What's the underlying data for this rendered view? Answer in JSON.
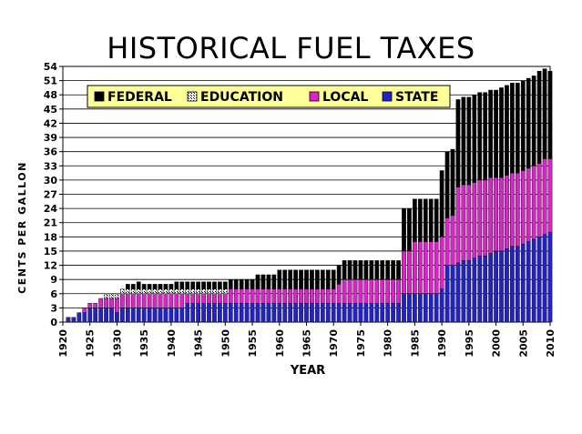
{
  "chart_data": {
    "type": "bar",
    "stacked": true,
    "title": "HISTORICAL FUEL TAXES",
    "xlabel": "YEAR",
    "ylabel": "CENTS PER GALLON",
    "ylim": [
      0,
      54
    ],
    "yticks": [
      0,
      3,
      6,
      9,
      12,
      15,
      18,
      21,
      24,
      27,
      30,
      33,
      36,
      39,
      42,
      45,
      48,
      51,
      54
    ],
    "xticks": [
      1920,
      1925,
      1930,
      1935,
      1940,
      1945,
      1950,
      1955,
      1960,
      1965,
      1970,
      1975,
      1980,
      1985,
      1990,
      1995,
      2000,
      2005,
      2010
    ],
    "grid": true,
    "legend_position": "top-left",
    "years": [
      1921,
      1922,
      1923,
      1924,
      1925,
      1926,
      1927,
      1928,
      1929,
      1930,
      1931,
      1932,
      1933,
      1934,
      1935,
      1936,
      1937,
      1938,
      1939,
      1940,
      1941,
      1942,
      1943,
      1944,
      1945,
      1946,
      1947,
      1948,
      1949,
      1950,
      1951,
      1952,
      1953,
      1954,
      1955,
      1956,
      1957,
      1958,
      1959,
      1960,
      1961,
      1962,
      1963,
      1964,
      1965,
      1966,
      1967,
      1968,
      1969,
      1970,
      1971,
      1972,
      1973,
      1974,
      1975,
      1976,
      1977,
      1978,
      1979,
      1980,
      1981,
      1982,
      1983,
      1984,
      1985,
      1986,
      1987,
      1988,
      1989,
      1990,
      1991,
      1992,
      1993,
      1994,
      1995,
      1996,
      1997,
      1998,
      1999,
      2000,
      2001,
      2002,
      2003,
      2004,
      2005,
      2006,
      2007,
      2008,
      2009,
      2010
    ],
    "series": [
      {
        "name": "STATE",
        "color": "#2222cc",
        "values": [
          1,
          1,
          2,
          2,
          3,
          3,
          3,
          3,
          3,
          2,
          3,
          3,
          3,
          3,
          3,
          3,
          3,
          3,
          3,
          3,
          3,
          3,
          4,
          4,
          4,
          4,
          4,
          4,
          4,
          4,
          4,
          4,
          4,
          4,
          4,
          4,
          4,
          4,
          4,
          4,
          4,
          4,
          4,
          4,
          4,
          4,
          4,
          4,
          4,
          4,
          4,
          4,
          4,
          4,
          4,
          4,
          4,
          4,
          4,
          4,
          4,
          4,
          6,
          6,
          6,
          6,
          6,
          6,
          6,
          7,
          12,
          12,
          12.5,
          13,
          13,
          13.5,
          14,
          14,
          14.5,
          15,
          15,
          15.5,
          16,
          16,
          16.5,
          17,
          17.5,
          18,
          18.5,
          19
        ]
      },
      {
        "name": "LOCAL",
        "color": "#dd22cc",
        "values": [
          0,
          0,
          0,
          1,
          1,
          1,
          2,
          2,
          2,
          3,
          3,
          3,
          3,
          3,
          3,
          3,
          3,
          3,
          3,
          3,
          3,
          3,
          2,
          2,
          2,
          2,
          2,
          2,
          2,
          2,
          3,
          3,
          3,
          3,
          3,
          3,
          3,
          3,
          3,
          3,
          3,
          3,
          3,
          3,
          3,
          3,
          3,
          3,
          3,
          3,
          4,
          5,
          5,
          5,
          5,
          5,
          5,
          5,
          5,
          5,
          5,
          5,
          9,
          9,
          11,
          11,
          11,
          11,
          11,
          11,
          10,
          10.5,
          16,
          16,
          16,
          16,
          16,
          16,
          16,
          15.5,
          15.5,
          15.5,
          15.5,
          15.5,
          15.5,
          15.5,
          15.5,
          15.5,
          16,
          15.5
        ]
      },
      {
        "name": "EDUCATION",
        "color": "#ffffff",
        "values": [
          0,
          0,
          0,
          0,
          0,
          0,
          0,
          1,
          1,
          1,
          1,
          1,
          1,
          1,
          1,
          1,
          1,
          1,
          1,
          1,
          1,
          1,
          1,
          1,
          1,
          1,
          1,
          1,
          1,
          1,
          0,
          0,
          0,
          0,
          0,
          0,
          0,
          0,
          0,
          0,
          0,
          0,
          0,
          0,
          0,
          0,
          0,
          0,
          0,
          0,
          0,
          0,
          0,
          0,
          0,
          0,
          0,
          0,
          0,
          0,
          0,
          0,
          0,
          0,
          0,
          0,
          0,
          0,
          0,
          0,
          0,
          0,
          0,
          0,
          0,
          0,
          0,
          0,
          0,
          0,
          0,
          0,
          0,
          0,
          0,
          0,
          0,
          0,
          0,
          0
        ]
      },
      {
        "name": "FEDERAL",
        "color": "#000000",
        "values": [
          0,
          0,
          0,
          0,
          0,
          0,
          0,
          0,
          0,
          0,
          0,
          1,
          1,
          1.5,
          1,
          1,
          1,
          1,
          1,
          1,
          1.5,
          1.5,
          1.5,
          1.5,
          1.5,
          1.5,
          1.5,
          1.5,
          1.5,
          1.5,
          2,
          2,
          2,
          2,
          2,
          3,
          3,
          3,
          3,
          4,
          4,
          4,
          4,
          4,
          4,
          4,
          4,
          4,
          4,
          4,
          4,
          4,
          4,
          4,
          4,
          4,
          4,
          4,
          4,
          4,
          4,
          4,
          9,
          9,
          9,
          9,
          9,
          9,
          9,
          14,
          14,
          14,
          18.5,
          18.5,
          18.5,
          18.5,
          18.5,
          18.5,
          18.5,
          18.5,
          19,
          19,
          19,
          19,
          19,
          19,
          19,
          19.5,
          19,
          18.5
        ]
      }
    ],
    "legend_order": [
      "FEDERAL",
      "EDUCATION",
      "LOCAL",
      "STATE"
    ]
  }
}
